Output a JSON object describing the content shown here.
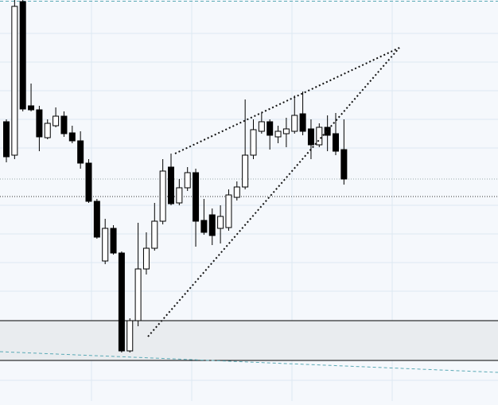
{
  "chart_data": {
    "type": "candlestick",
    "ylim": [
      0,
      504
    ],
    "up_color": "#ffffff",
    "down_color": "#000000",
    "outline_color": "#000000",
    "open": [
      351,
      309,
      502,
      371,
      366,
      331,
      346,
      358,
      337,
      327,
      299,
      251,
      176,
      217,
      186,
      63,
      101,
      166,
      192,
      226,
      294,
      249,
      268,
      287,
      227,
      234,
      217,
      218,
      256,
      269,
      309,
      339,
      351,
      332,
      336,
      339,
      361,
      342,
      322,
      344,
      336,
      316
    ],
    "high": [
      354,
      504,
      504,
      399,
      371,
      354,
      369,
      364,
      346,
      339,
      304,
      254,
      229,
      221,
      188,
      104,
      224,
      212,
      249,
      304,
      311,
      279,
      294,
      292,
      254,
      242,
      246,
      266,
      276,
      379,
      354,
      362,
      354,
      346,
      356,
      384,
      389,
      354,
      349,
      359,
      362,
      354
    ],
    "low": [
      300,
      304,
      364,
      364,
      314,
      329,
      344,
      332,
      324,
      292,
      249,
      204,
      172,
      184,
      61,
      61,
      94,
      159,
      189,
      222,
      246,
      246,
      264,
      194,
      209,
      196,
      198,
      214,
      252,
      266,
      304,
      336,
      316,
      324,
      319,
      336,
      334,
      304,
      319,
      314,
      309,
      272
    ],
    "close": [
      307,
      496,
      367,
      366,
      332,
      349,
      358,
      336,
      327,
      299,
      251,
      206,
      217,
      186,
      63,
      101,
      166,
      192,
      226,
      289,
      248,
      268,
      287,
      226,
      212,
      208,
      232,
      259,
      269,
      309,
      341,
      351,
      334,
      339,
      342,
      359,
      339,
      322,
      344,
      334,
      314,
      279
    ]
  }
}
